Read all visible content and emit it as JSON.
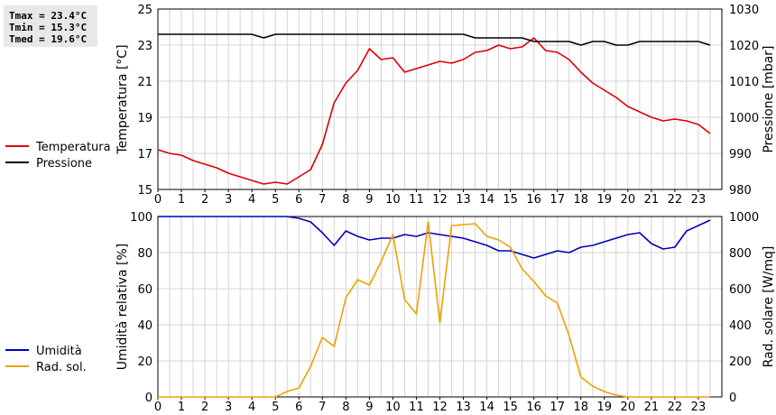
{
  "stats": {
    "tmax": "Tmax = 23.4°C",
    "tmin": "Tmin = 15.3°C",
    "tmed": "Tmed = 19.6°C"
  },
  "chart_data": [
    {
      "type": "line",
      "title": "",
      "xlabel": "",
      "x_ticks": [
        "0",
        "1",
        "2",
        "3",
        "4",
        "5",
        "6",
        "7",
        "8",
        "9",
        "10",
        "11",
        "12",
        "13",
        "14",
        "15",
        "16",
        "17",
        "18",
        "19",
        "20",
        "21",
        "22",
        "23"
      ],
      "xlim": [
        0,
        24
      ],
      "ylabel_left": "Temperatura [°C]",
      "ylabel_right": "Pressione [mbar]",
      "ylim_left": [
        15,
        25
      ],
      "ylim_right": [
        980,
        1030
      ],
      "y_ticks_left": [
        "15",
        "17",
        "19",
        "21",
        "23",
        "25"
      ],
      "y_ticks_right": [
        "980",
        "990",
        "1000",
        "1010",
        "1020",
        "1030"
      ],
      "grid": true,
      "legend_position": "left",
      "series": [
        {
          "name": "Temperatura",
          "axis": "left",
          "color": "#dd0000",
          "x": [
            0,
            0.5,
            1,
            1.5,
            2,
            2.5,
            3,
            3.5,
            4,
            4.5,
            5,
            5.5,
            6,
            6.5,
            7,
            7.5,
            8,
            8.5,
            9,
            9.5,
            10,
            10.5,
            11,
            11.5,
            12,
            12.5,
            13,
            13.5,
            14,
            14.5,
            15,
            15.5,
            16,
            16.5,
            17,
            17.5,
            18,
            18.5,
            19,
            19.5,
            20,
            20.5,
            21,
            21.5,
            22,
            22.5,
            23,
            23.5
          ],
          "values": [
            17.2,
            17.0,
            16.9,
            16.6,
            16.4,
            16.2,
            15.9,
            15.7,
            15.5,
            15.3,
            15.4,
            15.3,
            15.7,
            16.1,
            17.5,
            19.8,
            20.9,
            21.6,
            22.8,
            22.2,
            22.3,
            21.5,
            21.7,
            21.9,
            22.1,
            22.0,
            22.2,
            22.6,
            22.7,
            23.0,
            22.8,
            22.9,
            23.4,
            22.7,
            22.6,
            22.2,
            21.5,
            20.9,
            20.5,
            20.1,
            19.6,
            19.3,
            19.0,
            18.8,
            18.9,
            18.8,
            18.6,
            18.1
          ]
        },
        {
          "name": "Pressione",
          "axis": "right",
          "color": "#000000",
          "x": [
            0,
            1,
            2,
            3,
            4,
            4.5,
            5,
            6,
            7,
            8,
            9,
            10,
            11,
            12,
            13,
            13.5,
            14,
            15,
            15.5,
            16,
            17,
            17.5,
            18,
            18.5,
            19,
            19.5,
            20,
            20.5,
            21,
            22,
            23,
            23.5
          ],
          "values": [
            1023,
            1023,
            1023,
            1023,
            1023,
            1022,
            1023,
            1023,
            1023,
            1023,
            1023,
            1023,
            1023,
            1023,
            1023,
            1022,
            1022,
            1022,
            1022,
            1021,
            1021,
            1021,
            1020,
            1021,
            1021,
            1020,
            1020,
            1021,
            1021,
            1021,
            1021,
            1020
          ]
        }
      ]
    },
    {
      "type": "line",
      "title": "",
      "xlabel": "",
      "x_ticks": [
        "0",
        "1",
        "2",
        "3",
        "4",
        "5",
        "6",
        "7",
        "8",
        "9",
        "10",
        "11",
        "12",
        "13",
        "14",
        "15",
        "16",
        "17",
        "18",
        "19",
        "20",
        "21",
        "22",
        "23"
      ],
      "xlim": [
        0,
        24
      ],
      "ylabel_left": "Umidità relativa [%]",
      "ylabel_right": "Rad. solare [W/mq]",
      "ylim_left": [
        0,
        100
      ],
      "ylim_right": [
        0,
        1000
      ],
      "y_ticks_left": [
        "0",
        "20",
        "40",
        "60",
        "80",
        "100"
      ],
      "y_ticks_right": [
        "0",
        "200",
        "400",
        "600",
        "800",
        "1000"
      ],
      "grid": true,
      "legend_position": "left",
      "series": [
        {
          "name": "Umidità",
          "axis": "left",
          "color": "#0000bb",
          "x": [
            0,
            1,
            2,
            3,
            4,
            5,
            5.5,
            6,
            6.5,
            7,
            7.5,
            8,
            8.5,
            9,
            9.5,
            10,
            10.5,
            11,
            11.5,
            12,
            12.5,
            13,
            13.5,
            14,
            14.5,
            15,
            15.5,
            16,
            16.5,
            17,
            17.5,
            18,
            18.5,
            19,
            19.5,
            20,
            20.5,
            21,
            21.5,
            22,
            22.5,
            23,
            23.5
          ],
          "values": [
            100,
            100,
            100,
            100,
            100,
            100,
            100,
            99,
            97,
            91,
            84,
            92,
            89,
            87,
            88,
            88,
            90,
            89,
            91,
            90,
            89,
            88,
            86,
            84,
            81,
            81,
            79,
            77,
            79,
            81,
            80,
            83,
            84,
            86,
            88,
            90,
            91,
            85,
            82,
            83,
            92,
            95,
            98
          ]
        },
        {
          "name": "Rad. sol.",
          "axis": "right",
          "color": "#f0a000",
          "x": [
            0,
            1,
            2,
            3,
            4,
            5,
            5.5,
            6,
            6.5,
            7,
            7.5,
            8,
            8.5,
            9,
            9.5,
            10,
            10.5,
            11,
            11.5,
            12,
            12.5,
            13,
            13.5,
            14,
            14.5,
            15,
            15.5,
            16,
            16.5,
            17,
            17.5,
            18,
            18.5,
            19,
            19.5,
            20,
            21,
            22,
            23,
            23.5
          ],
          "values": [
            0,
            0,
            0,
            0,
            0,
            0,
            30,
            50,
            170,
            330,
            280,
            550,
            650,
            620,
            750,
            900,
            540,
            460,
            970,
            410,
            950,
            955,
            960,
            890,
            870,
            830,
            710,
            640,
            560,
            520,
            340,
            110,
            60,
            30,
            10,
            0,
            0,
            0,
            0,
            0
          ]
        }
      ]
    }
  ]
}
